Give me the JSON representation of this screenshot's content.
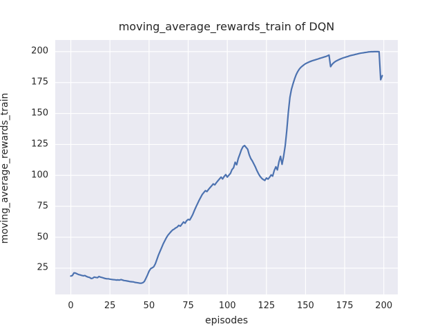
{
  "figure": {
    "title": "moving_average_rewards_train of DQN",
    "xlabel": "episodes",
    "ylabel": "moving_average_rewards_train"
  },
  "chart_data": {
    "type": "line",
    "title": "moving_average_rewards_train of DQN",
    "xlabel": "episodes",
    "ylabel": "moving_average_rewards_train",
    "grid": true,
    "legend": false,
    "xlim": [
      -9.95,
      208.95
    ],
    "ylim": [
      3.4,
      209.4
    ],
    "x_ticks": [
      0,
      25,
      50,
      75,
      100,
      125,
      150,
      175,
      200
    ],
    "y_ticks": [
      25,
      50,
      75,
      100,
      125,
      150,
      175,
      200
    ],
    "style": {
      "figure_background": "#FFFFFF",
      "axes_background": "#EAEAF2",
      "grid_color": "#FFFFFF",
      "line_color": "#4C72B0",
      "text_color": "#262626",
      "line_width": 2.2
    },
    "series": [
      {
        "name": "moving_average_rewards_train",
        "color": "#4C72B0",
        "points": [
          [
            0,
            18.6
          ],
          [
            1,
            19.0
          ],
          [
            2,
            21.2
          ],
          [
            3,
            21.0
          ],
          [
            4,
            20.4
          ],
          [
            5,
            19.8
          ],
          [
            6,
            19.5
          ],
          [
            7,
            19.1
          ],
          [
            8,
            18.8
          ],
          [
            9,
            19.0
          ],
          [
            10,
            18.3
          ],
          [
            11,
            17.8
          ],
          [
            12,
            17.5
          ],
          [
            13,
            16.6
          ],
          [
            14,
            16.9
          ],
          [
            15,
            17.8
          ],
          [
            16,
            17.5
          ],
          [
            17,
            17.3
          ],
          [
            18,
            18.2
          ],
          [
            19,
            17.7
          ],
          [
            20,
            17.4
          ],
          [
            21,
            17.0
          ],
          [
            22,
            16.6
          ],
          [
            23,
            16.4
          ],
          [
            24,
            16.4
          ],
          [
            25,
            16.1
          ],
          [
            26,
            15.9
          ],
          [
            27,
            15.7
          ],
          [
            28,
            15.6
          ],
          [
            29,
            15.4
          ],
          [
            30,
            15.5
          ],
          [
            31,
            15.3
          ],
          [
            32,
            15.7
          ],
          [
            33,
            15.4
          ],
          [
            34,
            15.0
          ],
          [
            35,
            14.8
          ],
          [
            36,
            14.6
          ],
          [
            37,
            14.4
          ],
          [
            38,
            14.1
          ],
          [
            39,
            14.0
          ],
          [
            40,
            13.9
          ],
          [
            41,
            13.5
          ],
          [
            42,
            13.3
          ],
          [
            43,
            13.1
          ],
          [
            44,
            12.9
          ],
          [
            45,
            12.8
          ],
          [
            46,
            13.2
          ],
          [
            47,
            14.2
          ],
          [
            48,
            16.8
          ],
          [
            49,
            19.5
          ],
          [
            50,
            22.5
          ],
          [
            51,
            24.5
          ],
          [
            52,
            25.3
          ],
          [
            53,
            26.1
          ],
          [
            54,
            28.5
          ],
          [
            55,
            32.0
          ],
          [
            56,
            35.5
          ],
          [
            57,
            38.5
          ],
          [
            58,
            41.5
          ],
          [
            59,
            44.5
          ],
          [
            60,
            47.0
          ],
          [
            61,
            49.5
          ],
          [
            62,
            51.5
          ],
          [
            63,
            53.0
          ],
          [
            64,
            54.5
          ],
          [
            65,
            55.8
          ],
          [
            66,
            56.5
          ],
          [
            67,
            57.5
          ],
          [
            68,
            58.2
          ],
          [
            69,
            59.6
          ],
          [
            70,
            58.9
          ],
          [
            71,
            60.6
          ],
          [
            72,
            62.3
          ],
          [
            73,
            61.3
          ],
          [
            74,
            63.3
          ],
          [
            75,
            64.4
          ],
          [
            76,
            64.0
          ],
          [
            77,
            66.1
          ],
          [
            78,
            68.6
          ],
          [
            79,
            71.6
          ],
          [
            80,
            74.5
          ],
          [
            81,
            77.2
          ],
          [
            82,
            79.8
          ],
          [
            83,
            82.2
          ],
          [
            84,
            84.6
          ],
          [
            85,
            86.1
          ],
          [
            86,
            87.6
          ],
          [
            87,
            86.9
          ],
          [
            88,
            88.6
          ],
          [
            89,
            90.1
          ],
          [
            90,
            91.6
          ],
          [
            91,
            93.1
          ],
          [
            92,
            92.3
          ],
          [
            93,
            94.1
          ],
          [
            94,
            95.6
          ],
          [
            95,
            97.1
          ],
          [
            96,
            98.6
          ],
          [
            97,
            97.1
          ],
          [
            98,
            99.1
          ],
          [
            99,
            100.6
          ],
          [
            100,
            98.6
          ],
          [
            101,
            100.1
          ],
          [
            102,
            101.6
          ],
          [
            103,
            104.6
          ],
          [
            104,
            106.1
          ],
          [
            105,
            110.6
          ],
          [
            106,
            108.6
          ],
          [
            107,
            113.6
          ],
          [
            108,
            117.1
          ],
          [
            109,
            120.6
          ],
          [
            110,
            123.1
          ],
          [
            111,
            124.1
          ],
          [
            112,
            122.6
          ],
          [
            113,
            121.1
          ],
          [
            114,
            116.6
          ],
          [
            115,
            113.6
          ],
          [
            116,
            111.6
          ],
          [
            117,
            109.1
          ],
          [
            118,
            106.6
          ],
          [
            119,
            103.6
          ],
          [
            120,
            101.1
          ],
          [
            121,
            99.1
          ],
          [
            122,
            97.6
          ],
          [
            123,
            96.6
          ],
          [
            124,
            95.9
          ],
          [
            125,
            97.9
          ],
          [
            126,
            96.9
          ],
          [
            127,
            98.4
          ],
          [
            128,
            100.4
          ],
          [
            129,
            99.4
          ],
          [
            130,
            103.9
          ],
          [
            131,
            106.9
          ],
          [
            132,
            104.4
          ],
          [
            133,
            110.9
          ],
          [
            134,
            115.4
          ],
          [
            135,
            108.9
          ],
          [
            136,
            115.5
          ],
          [
            137,
            124.0
          ],
          [
            138,
            136.0
          ],
          [
            139,
            151.0
          ],
          [
            140,
            163.0
          ],
          [
            141,
            169.5
          ],
          [
            142,
            174.0
          ],
          [
            143,
            178.0
          ],
          [
            144,
            181.3
          ],
          [
            145,
            183.9
          ],
          [
            146,
            185.9
          ],
          [
            147,
            187.3
          ],
          [
            148,
            188.4
          ],
          [
            149,
            189.4
          ],
          [
            150,
            190.2
          ],
          [
            151,
            190.9
          ],
          [
            152,
            191.5
          ],
          [
            153,
            192.0
          ],
          [
            154,
            192.5
          ],
          [
            155,
            192.9
          ],
          [
            156,
            193.3
          ],
          [
            157,
            193.7
          ],
          [
            158,
            194.1
          ],
          [
            159,
            194.5
          ],
          [
            160,
            194.9
          ],
          [
            161,
            195.3
          ],
          [
            162,
            195.7
          ],
          [
            163,
            196.1
          ],
          [
            164,
            196.6
          ],
          [
            165,
            197.2
          ],
          [
            166,
            187.9
          ],
          [
            167,
            189.7
          ],
          [
            168,
            191.0
          ],
          [
            169,
            192.0
          ],
          [
            170,
            192.7
          ],
          [
            171,
            193.3
          ],
          [
            172,
            193.9
          ],
          [
            173,
            194.4
          ],
          [
            174,
            194.9
          ],
          [
            175,
            195.3
          ],
          [
            176,
            195.7
          ],
          [
            177,
            196.1
          ],
          [
            178,
            196.5
          ],
          [
            179,
            196.9
          ],
          [
            180,
            197.2
          ],
          [
            181,
            197.5
          ],
          [
            182,
            197.8
          ],
          [
            183,
            198.1
          ],
          [
            184,
            198.4
          ],
          [
            185,
            198.7
          ],
          [
            186,
            198.9
          ],
          [
            187,
            199.1
          ],
          [
            188,
            199.3
          ],
          [
            189,
            199.5
          ],
          [
            190,
            199.7
          ],
          [
            191,
            199.8
          ],
          [
            192,
            199.9
          ],
          [
            193,
            199.9
          ],
          [
            194,
            200.0
          ],
          [
            195,
            200.0
          ],
          [
            196,
            200.0
          ],
          [
            197,
            199.9
          ],
          [
            198,
            177.3
          ],
          [
            199,
            180.6
          ]
        ]
      }
    ]
  }
}
